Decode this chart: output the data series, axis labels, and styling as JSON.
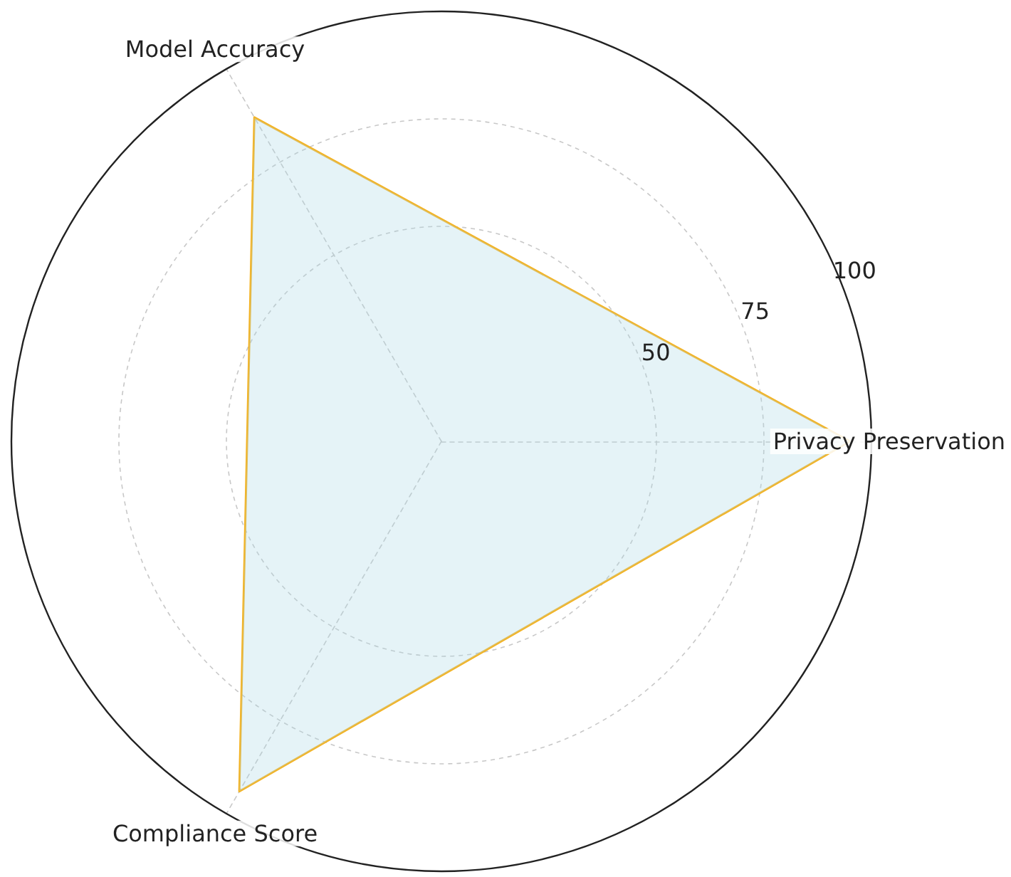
{
  "chart_data": {
    "type": "radar",
    "categories": [
      "Privacy Preservation",
      "Compliance Score",
      "Model Accuracy"
    ],
    "series": [
      {
        "color": "#f5b21f",
        "values": [
          95,
          94,
          87
        ]
      }
    ],
    "ylim": [
      0,
      100
    ],
    "yticks": [
      50,
      75,
      100
    ],
    "grid": true,
    "marker": "none",
    "line_style": "solid"
  }
}
